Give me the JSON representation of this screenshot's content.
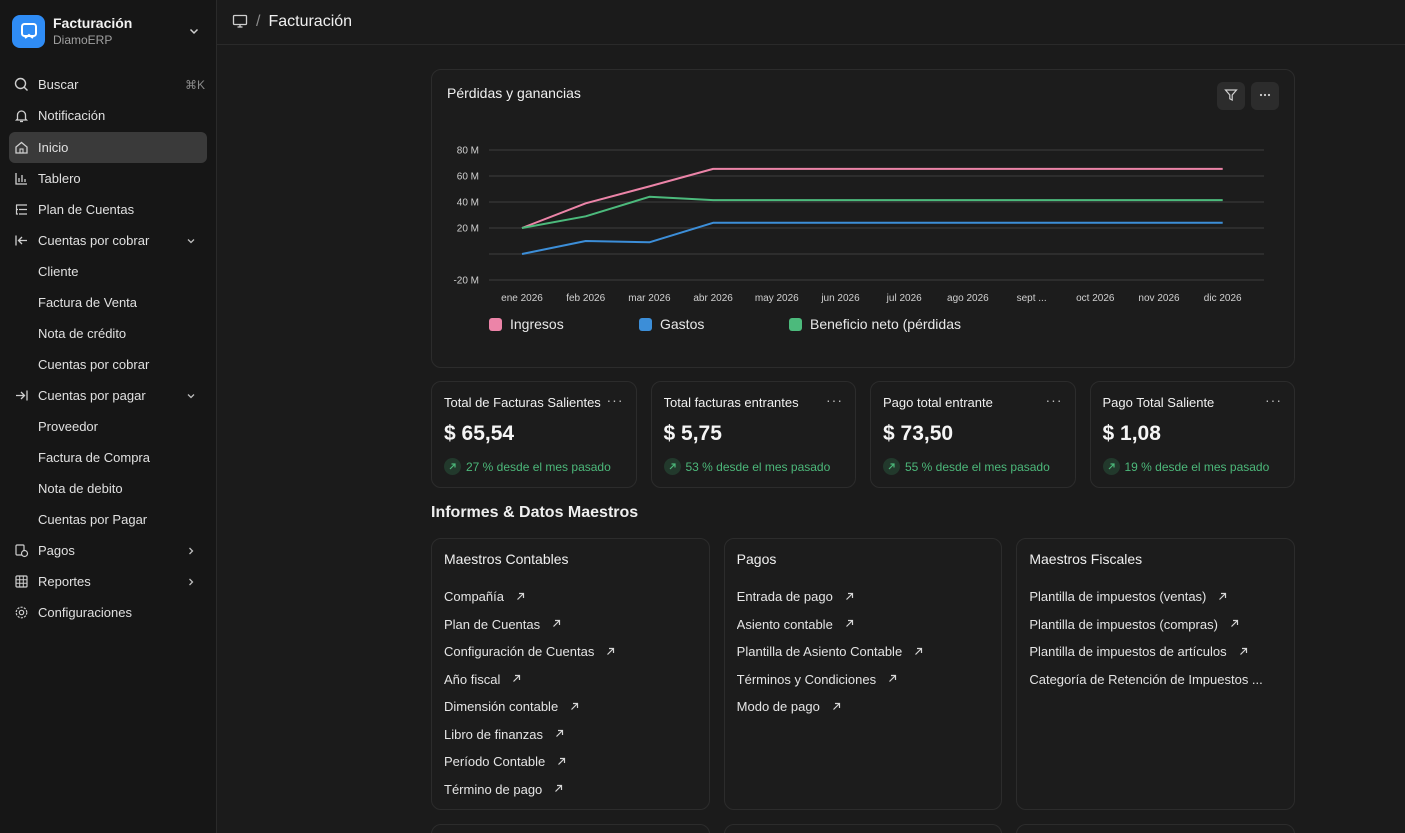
{
  "brand": {
    "title": "Facturación",
    "subtitle": "DiamoERP"
  },
  "sidebar": {
    "search": {
      "label": "Buscar",
      "shortcut": "⌘K"
    },
    "notifications": {
      "label": "Notificación"
    },
    "items": [
      {
        "label": "Inicio"
      },
      {
        "label": "Tablero"
      },
      {
        "label": "Plan de Cuentas"
      },
      {
        "label": "Cuentas por cobrar"
      },
      {
        "label": "Cliente"
      },
      {
        "label": "Factura de Venta"
      },
      {
        "label": "Nota de crédito"
      },
      {
        "label": "Cuentas por cobrar"
      },
      {
        "label": "Cuentas por pagar"
      },
      {
        "label": "Proveedor"
      },
      {
        "label": "Factura de Compra"
      },
      {
        "label": "Nota de debito"
      },
      {
        "label": "Cuentas por Pagar"
      },
      {
        "label": "Pagos"
      },
      {
        "label": "Reportes"
      },
      {
        "label": "Configuraciones"
      }
    ]
  },
  "breadcrumb": {
    "separator": "/",
    "title": "Facturación"
  },
  "chart_card": {
    "title": "Pérdidas y ganancias"
  },
  "chart_data": {
    "type": "line",
    "title": "Pérdidas y ganancias",
    "categories": [
      "ene 2026",
      "feb 2026",
      "mar 2026",
      "abr 2026",
      "may 2026",
      "jun 2026",
      "jul 2026",
      "ago 2026",
      "sept ...",
      "oct 2026",
      "nov 2026",
      "dic 2026"
    ],
    "y_ticks": [
      "80 M",
      "60 M",
      "40 M",
      "20 M",
      "",
      "-20 M"
    ],
    "y_tick_values": [
      80,
      60,
      40,
      20,
      0,
      -20
    ],
    "ylim": [
      -20,
      80
    ],
    "grid": true,
    "legend": "bottom-left",
    "series": [
      {
        "name": "Ingresos",
        "color": "#ec84a8",
        "values": [
          20,
          39,
          52,
          65.5,
          65.5,
          65.5,
          65.5,
          65.5,
          65.5,
          65.5,
          65.5,
          65.5
        ]
      },
      {
        "name": "Gastos",
        "color": "#3c8ed8",
        "values": [
          0,
          10,
          9,
          24,
          24,
          24,
          24,
          24,
          24,
          24,
          24,
          24
        ]
      },
      {
        "name": "Beneficio neto (pérdidas",
        "color": "#4cba7c",
        "values": [
          20,
          29,
          44,
          41.5,
          41.5,
          41.5,
          41.5,
          41.5,
          41.5,
          41.5,
          41.5,
          41.5
        ]
      }
    ]
  },
  "stats": [
    {
      "title": "Total de Facturas Salientes",
      "value": "$ 65,54",
      "trend": "27 % desde el mes pasado"
    },
    {
      "title": "Total facturas entrantes",
      "value": "$ 5,75",
      "trend": "53 % desde el mes pasado"
    },
    {
      "title": "Pago total entrante",
      "value": "$ 73,50",
      "trend": "55 % desde el mes pasado"
    },
    {
      "title": "Pago Total Saliente",
      "value": "$ 1,08",
      "trend": "19 % desde el mes pasado"
    }
  ],
  "stat_more": "···",
  "reports_section": {
    "title": "Informes & Datos Maestros"
  },
  "reports": [
    {
      "title": "Maestros Contables",
      "links": [
        "Compañía",
        "Plan de Cuentas",
        "Configuración de Cuentas",
        "Año fiscal",
        "Dimensión contable",
        "Libro de finanzas",
        "Período Contable",
        "Término de pago"
      ]
    },
    {
      "title": "Pagos",
      "links": [
        "Entrada de pago",
        "Asiento contable",
        "Plantilla de Asiento Contable",
        "Términos y Condiciones",
        "Modo de pago"
      ]
    },
    {
      "title": "Maestros Fiscales",
      "links": [
        "Plantilla de impuestos (ventas)",
        "Plantilla de impuestos (compras)",
        "Plantilla de impuestos de artículos",
        "Categoría de Retención de Impuestos ..."
      ]
    }
  ],
  "colors": {
    "accent": "#2f8cf5",
    "trend_green": "#4cb87a"
  }
}
